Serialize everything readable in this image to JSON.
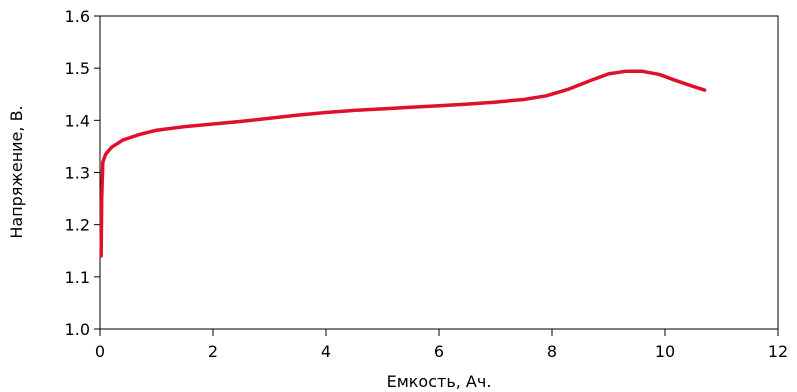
{
  "chart_data": {
    "type": "line",
    "title": "",
    "xlabel": "Емкость, Ач.",
    "ylabel": "Напряжение, В.",
    "xlim": [
      0,
      12
    ],
    "ylim": [
      1.0,
      1.6
    ],
    "xticks": [
      0,
      2,
      4,
      6,
      8,
      10,
      12
    ],
    "yticks": [
      "1.0",
      "1.1",
      "1.2",
      "1.3",
      "1.4",
      "1.5",
      "1.6"
    ],
    "grid": false,
    "legend": "none",
    "series": [
      {
        "color": "#e0102c",
        "points": [
          [
            0.02,
            1.14
          ],
          [
            0.03,
            1.25
          ],
          [
            0.05,
            1.32
          ],
          [
            0.1,
            1.335
          ],
          [
            0.2,
            1.348
          ],
          [
            0.4,
            1.362
          ],
          [
            0.7,
            1.373
          ],
          [
            1.0,
            1.381
          ],
          [
            1.5,
            1.388
          ],
          [
            2.0,
            1.393
          ],
          [
            2.5,
            1.398
          ],
          [
            3.0,
            1.404
          ],
          [
            3.5,
            1.41
          ],
          [
            4.0,
            1.415
          ],
          [
            4.5,
            1.419
          ],
          [
            5.0,
            1.422
          ],
          [
            5.5,
            1.425
          ],
          [
            6.0,
            1.428
          ],
          [
            6.5,
            1.431
          ],
          [
            7.0,
            1.435
          ],
          [
            7.5,
            1.44
          ],
          [
            7.9,
            1.447
          ],
          [
            8.3,
            1.46
          ],
          [
            8.7,
            1.477
          ],
          [
            9.0,
            1.489
          ],
          [
            9.3,
            1.494
          ],
          [
            9.6,
            1.494
          ],
          [
            9.9,
            1.488
          ],
          [
            10.2,
            1.476
          ],
          [
            10.5,
            1.465
          ],
          [
            10.7,
            1.458
          ]
        ]
      }
    ]
  }
}
